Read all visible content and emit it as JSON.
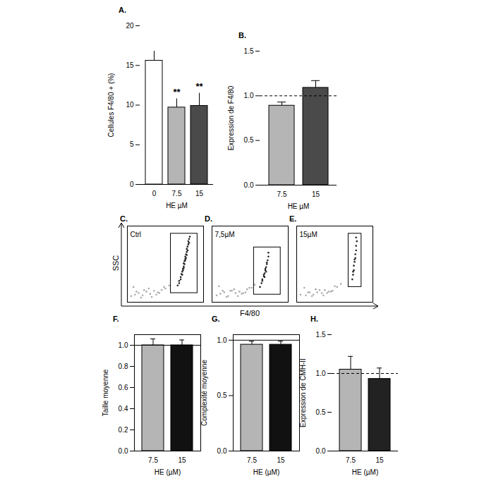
{
  "chart_data": [
    {
      "type": "bar",
      "title": "A.",
      "categories": [
        "0",
        "7.5",
        "15"
      ],
      "values": [
        15.6,
        9.7,
        9.9
      ],
      "errors": [
        1.2,
        1.1,
        1.6
      ],
      "colors": [
        "#ffffff",
        "#b5b5b5",
        "#4a4a4a"
      ],
      "ylim": [
        0,
        20
      ],
      "yticks": [
        0,
        5,
        10,
        15,
        20
      ],
      "y_label": "Cellules F4/80 + (%)",
      "x_label": "HE µM",
      "annotations": [
        {
          "category": "7.5",
          "text": "**"
        },
        {
          "category": "15",
          "text": "**"
        }
      ]
    },
    {
      "type": "bar",
      "title": "B.",
      "categories": [
        "7.5",
        "15"
      ],
      "values": [
        0.89,
        1.09
      ],
      "errors": [
        0.04,
        0.08
      ],
      "colors": [
        "#b5b5b5",
        "#4a4a4a"
      ],
      "ylim": [
        0,
        1.5
      ],
      "yticks": [
        {
          "value": 0,
          "label": "0.0"
        },
        {
          "value": 0.5,
          "label": "0.5"
        },
        {
          "value": 1,
          "label": "1.0"
        },
        {
          "value": 1.5,
          "label": "1.5"
        }
      ],
      "y_label": "Expression de F4/80",
      "x_label": "HE µM",
      "reference": 1,
      "line_style": "dashed"
    },
    {
      "type": "scatter",
      "title": "C.",
      "subtitle": "Ctrl",
      "y_label": "SSC",
      "tick_labels": false,
      "xlim": [
        0,
        100
      ],
      "ylim": [
        0,
        100
      ],
      "gate": {
        "x": [
          57,
          92
        ],
        "y": [
          12,
          90
        ]
      },
      "series": [
        {
          "color": "#222222",
          "x": [
            66,
            68,
            70,
            71,
            72,
            73,
            74,
            74,
            75,
            76,
            76,
            77,
            78,
            78,
            79,
            80,
            80,
            81,
            82,
            70,
            73,
            75,
            77,
            79,
            72,
            68,
            81,
            76,
            74,
            78
          ],
          "y": [
            22,
            28,
            33,
            37,
            40,
            44,
            47,
            51,
            54,
            57,
            60,
            63,
            66,
            70,
            73,
            76,
            80,
            83,
            86,
            30,
            42,
            50,
            58,
            68,
            36,
            25,
            78,
            55,
            45,
            62
          ]
        },
        {
          "color": "#aaaaaa",
          "x": [
            5,
            10,
            15,
            20,
            25,
            30,
            35,
            40,
            45,
            50,
            8,
            18,
            28,
            38,
            48,
            55,
            12,
            22,
            32,
            42
          ],
          "y": [
            8,
            10,
            12,
            9,
            14,
            11,
            15,
            13,
            16,
            18,
            20,
            6,
            18,
            10,
            20,
            22,
            14,
            16,
            7,
            12
          ]
        }
      ]
    },
    {
      "type": "scatter",
      "title": "D.",
      "subtitle": "7,5µM",
      "x_label": "F4/80",
      "tick_labels": false,
      "xlim": [
        0,
        100
      ],
      "ylim": [
        0,
        100
      ],
      "gate": {
        "x": [
          55,
          90
        ],
        "y": [
          10,
          72
        ]
      },
      "series": [
        {
          "color": "#222222",
          "x": [
            63,
            65,
            66,
            68,
            69,
            70,
            71,
            72,
            73,
            74,
            66,
            68,
            70,
            72,
            71,
            74,
            69
          ],
          "y": [
            20,
            25,
            30,
            34,
            38,
            42,
            46,
            50,
            55,
            60,
            28,
            36,
            44,
            52,
            40,
            65,
            33
          ]
        },
        {
          "color": "#aaaaaa",
          "x": [
            6,
            11,
            16,
            21,
            26,
            31,
            36,
            41,
            46,
            52,
            9,
            19,
            29,
            39,
            49,
            56,
            14,
            24,
            34,
            44
          ],
          "y": [
            9,
            11,
            13,
            8,
            15,
            12,
            14,
            12,
            17,
            19,
            21,
            7,
            17,
            11,
            19,
            23,
            15,
            15,
            8,
            13
          ]
        }
      ]
    },
    {
      "type": "scatter",
      "title": "E.",
      "subtitle": "15µM",
      "tick_labels": false,
      "xlim": [
        0,
        100
      ],
      "ylim": [
        0,
        100
      ],
      "gate": {
        "x": [
          68,
          85
        ],
        "y": [
          20,
          90
        ]
      },
      "series": [
        {
          "color": "#222222",
          "x": [
            73,
            74,
            75,
            75,
            76,
            77,
            77,
            78,
            78,
            79,
            76,
            74,
            78
          ],
          "y": [
            30,
            36,
            42,
            48,
            53,
            58,
            63,
            68,
            74,
            80,
            56,
            40,
            85
          ]
        },
        {
          "color": "#aaaaaa",
          "x": [
            5,
            12,
            17,
            22,
            27,
            33,
            37,
            42,
            47,
            53,
            10,
            20,
            30,
            40,
            50,
            58,
            15,
            25,
            35,
            45
          ],
          "y": [
            10,
            9,
            13,
            10,
            13,
            12,
            16,
            14,
            15,
            20,
            19,
            8,
            16,
            12,
            21,
            24,
            13,
            17,
            9,
            14
          ]
        }
      ]
    },
    {
      "type": "bar",
      "title": "F.",
      "categories": [
        "7.5",
        "15"
      ],
      "values": [
        1.0,
        1.0
      ],
      "errors": [
        0.06,
        0.05
      ],
      "colors": [
        "#b5b5b5",
        "#111111"
      ],
      "ylim": [
        0,
        1.1
      ],
      "yticks": [
        {
          "value": 0,
          "label": "0.0"
        },
        {
          "value": 0.2,
          "label": "0.2"
        },
        {
          "value": 0.4,
          "label": "0.4"
        },
        {
          "value": 0.6,
          "label": "0.6"
        },
        {
          "value": 0.8,
          "label": "0.8"
        },
        {
          "value": 1,
          "label": "1.0"
        }
      ],
      "y_label": "Taille moyenne",
      "x_label": "HE (µM)",
      "reference": 1,
      "line_style": "solid"
    },
    {
      "type": "bar",
      "title": "G.",
      "categories": [
        "7.5",
        "15"
      ],
      "values": [
        0.96,
        0.96
      ],
      "errors": [
        0.03,
        0.03
      ],
      "colors": [
        "#b5b5b5",
        "#111111"
      ],
      "ylim": [
        0,
        1.05
      ],
      "yticks": [
        {
          "value": 0,
          "label": "0.0"
        },
        {
          "value": 0.5,
          "label": "0.5"
        },
        {
          "value": 1,
          "label": "1.0"
        }
      ],
      "y_label": "Complexité moyenne",
      "x_label": "HE (µM)",
      "reference": 1,
      "line_style": "solid"
    },
    {
      "type": "bar",
      "title": "H.",
      "categories": [
        "7.5",
        "15"
      ],
      "values": [
        1.05,
        0.93
      ],
      "errors": [
        0.17,
        0.14
      ],
      "colors": [
        "#b5b5b5",
        "#222222"
      ],
      "ylim": [
        0,
        1.5
      ],
      "yticks": [
        {
          "value": 0,
          "label": "0.0"
        },
        {
          "value": 0.5,
          "label": "0.5"
        },
        {
          "value": 1,
          "label": "1.0"
        },
        {
          "value": 1.5,
          "label": "1.5"
        }
      ],
      "y_label": "Expression de CMH-II",
      "x_label": "HE (µM)",
      "reference": 1,
      "line_style": "dashed"
    }
  ]
}
